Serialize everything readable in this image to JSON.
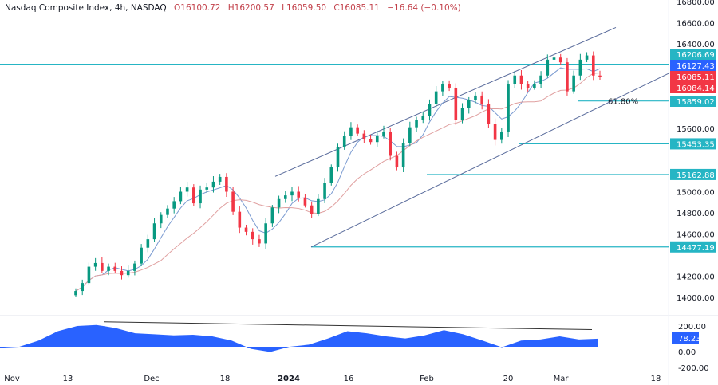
{
  "header": {
    "symbol": "Nasdaq Composite Index, 4h, NASDAQ",
    "open": "O16100.72",
    "high": "H16200.57",
    "low": "L16059.50",
    "close": "C16085.11",
    "change": "−16.64 (−0.10%)"
  },
  "chart_data": {
    "type": "candlestick",
    "title": "Nasdaq Composite Index, 4h, NASDAQ",
    "ylim": [
      13900,
      16800
    ],
    "y_ticks": [
      "16800.00",
      "16600.00",
      "16400.00",
      "15600.00",
      "15000.00",
      "14800.00",
      "14600.00",
      "14200.00",
      "14000.00"
    ],
    "x_ticks": [
      "Nov",
      "13",
      "Dec",
      "18",
      "2024",
      "16",
      "Feb",
      "20",
      "Mar",
      "18"
    ],
    "closes": [
      14060,
      14135,
      14290,
      14325,
      14250,
      14290,
      14250,
      14210,
      14250,
      14320,
      14470,
      14550,
      14700,
      14780,
      14840,
      14910,
      15000,
      15040,
      14890,
      15020,
      15040,
      15095,
      15140,
      15000,
      14810,
      14660,
      14620,
      14550,
      14510,
      14700,
      14850,
      14930,
      14965,
      15000,
      14945,
      14870,
      14790,
      14930,
      15080,
      15230,
      15420,
      15530,
      15610,
      15550,
      15500,
      15470,
      15530,
      15570,
      15340,
      15230,
      15460,
      15610,
      15680,
      15720,
      15830,
      15950,
      16020,
      15985,
      15680,
      15790,
      15870,
      15910,
      15830,
      15640,
      15490,
      15570,
      16020,
      16100,
      16020,
      15985,
      16020,
      16100,
      16250,
      16270,
      16225,
      15950,
      16100,
      16250,
      16290,
      16100,
      16085
    ],
    "moving_averages": [
      {
        "color": "#7b9bd1"
      },
      {
        "color": "#e0a0a0"
      }
    ],
    "horizontal_levels": [
      {
        "value": 16206.69,
        "label": "16206.69",
        "color": "#26b5c4"
      },
      {
        "value": 15859.02,
        "label": "15859.02",
        "color": "#26b5c4",
        "annotation": "61.80%"
      },
      {
        "value": 15453.35,
        "label": "15453.35",
        "color": "#26b5c4"
      },
      {
        "value": 15162.88,
        "label": "15162.88",
        "color": "#26b5c4"
      },
      {
        "value": 14477.19,
        "label": "14477.19",
        "color": "#26b5c4"
      }
    ],
    "price_labels": [
      {
        "value": 16127.43,
        "label": "16127.43",
        "color": "#2962ff"
      },
      {
        "value": 16085.11,
        "label": "16085.11",
        "color": "#f23645"
      },
      {
        "value": 16084.14,
        "label": "16084.14",
        "color": "#f23645"
      }
    ],
    "channel": {
      "upper": [
        15145,
        16555
      ],
      "lower": [
        14477,
        16127
      ]
    },
    "oscillator": {
      "ylim": [
        -250,
        250
      ],
      "y_ticks": [
        "200.00",
        "-200.00"
      ],
      "zero_label": "0.00",
      "current": "78.23",
      "color": "#2962ff",
      "values": [
        -10,
        0,
        60,
        150,
        200,
        210,
        180,
        130,
        120,
        110,
        115,
        100,
        60,
        -20,
        -50,
        0,
        20,
        80,
        150,
        130,
        100,
        80,
        110,
        160,
        120,
        60,
        -5,
        60,
        70,
        100,
        70,
        78
      ],
      "divergence": [
        240,
        165
      ]
    },
    "colors": {
      "up": "#089981",
      "down": "#f23645"
    }
  }
}
